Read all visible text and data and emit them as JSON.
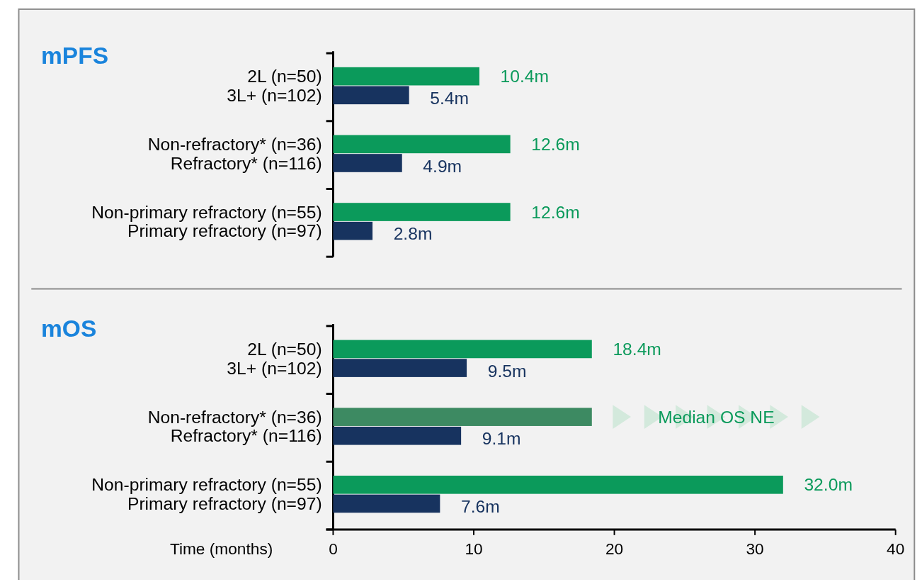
{
  "chart_data": [
    {
      "type": "bar",
      "orientation": "horizontal",
      "title": "mPFS",
      "tick_labels": "y",
      "xlim": [
        0,
        40
      ],
      "categories": [
        "2L (n=50)",
        "3L+ (n=102)",
        "Non-refractory* (n=36)",
        "Refractory* (n=116)",
        "Non-primary refractory (n=55)",
        "Primary refractory (n=97)"
      ],
      "series": [
        {
          "values": [
            10.4,
            5.4,
            12.6,
            4.9,
            12.6,
            2.8
          ],
          "colors": [
            "#0b9a5b",
            "#17335f",
            "#0b9a5b",
            "#17335f",
            "#0b9a5b",
            "#17335f"
          ],
          "value_labels": [
            "10.4m",
            "5.4m",
            "12.6m",
            "4.9m",
            "12.6m",
            "2.8m"
          ]
        }
      ]
    },
    {
      "type": "bar",
      "orientation": "horizontal",
      "title": "mOS",
      "xlabel": "Time (months)",
      "xlim": [
        0,
        40
      ],
      "xticks": [
        0,
        10,
        20,
        30,
        40
      ],
      "categories": [
        "2L (n=50)",
        "3L+ (n=102)",
        "Non-refractory* (n=36)",
        "Refractory* (n=116)",
        "Non-primary refractory (n=55)",
        "Primary refractory (n=97)"
      ],
      "series": [
        {
          "values": [
            18.4,
            9.5,
            18.4,
            9.1,
            32.0,
            7.6
          ],
          "colors": [
            "#0b9a5b",
            "#17335f",
            "#3d8a62",
            "#17335f",
            "#0b9a5b",
            "#17335f"
          ],
          "value_labels": [
            "18.4m",
            "9.5m",
            null,
            "9.1m",
            "32.0m",
            "7.6m"
          ]
        }
      ],
      "annotations": [
        "Median OS NE"
      ]
    }
  ]
}
